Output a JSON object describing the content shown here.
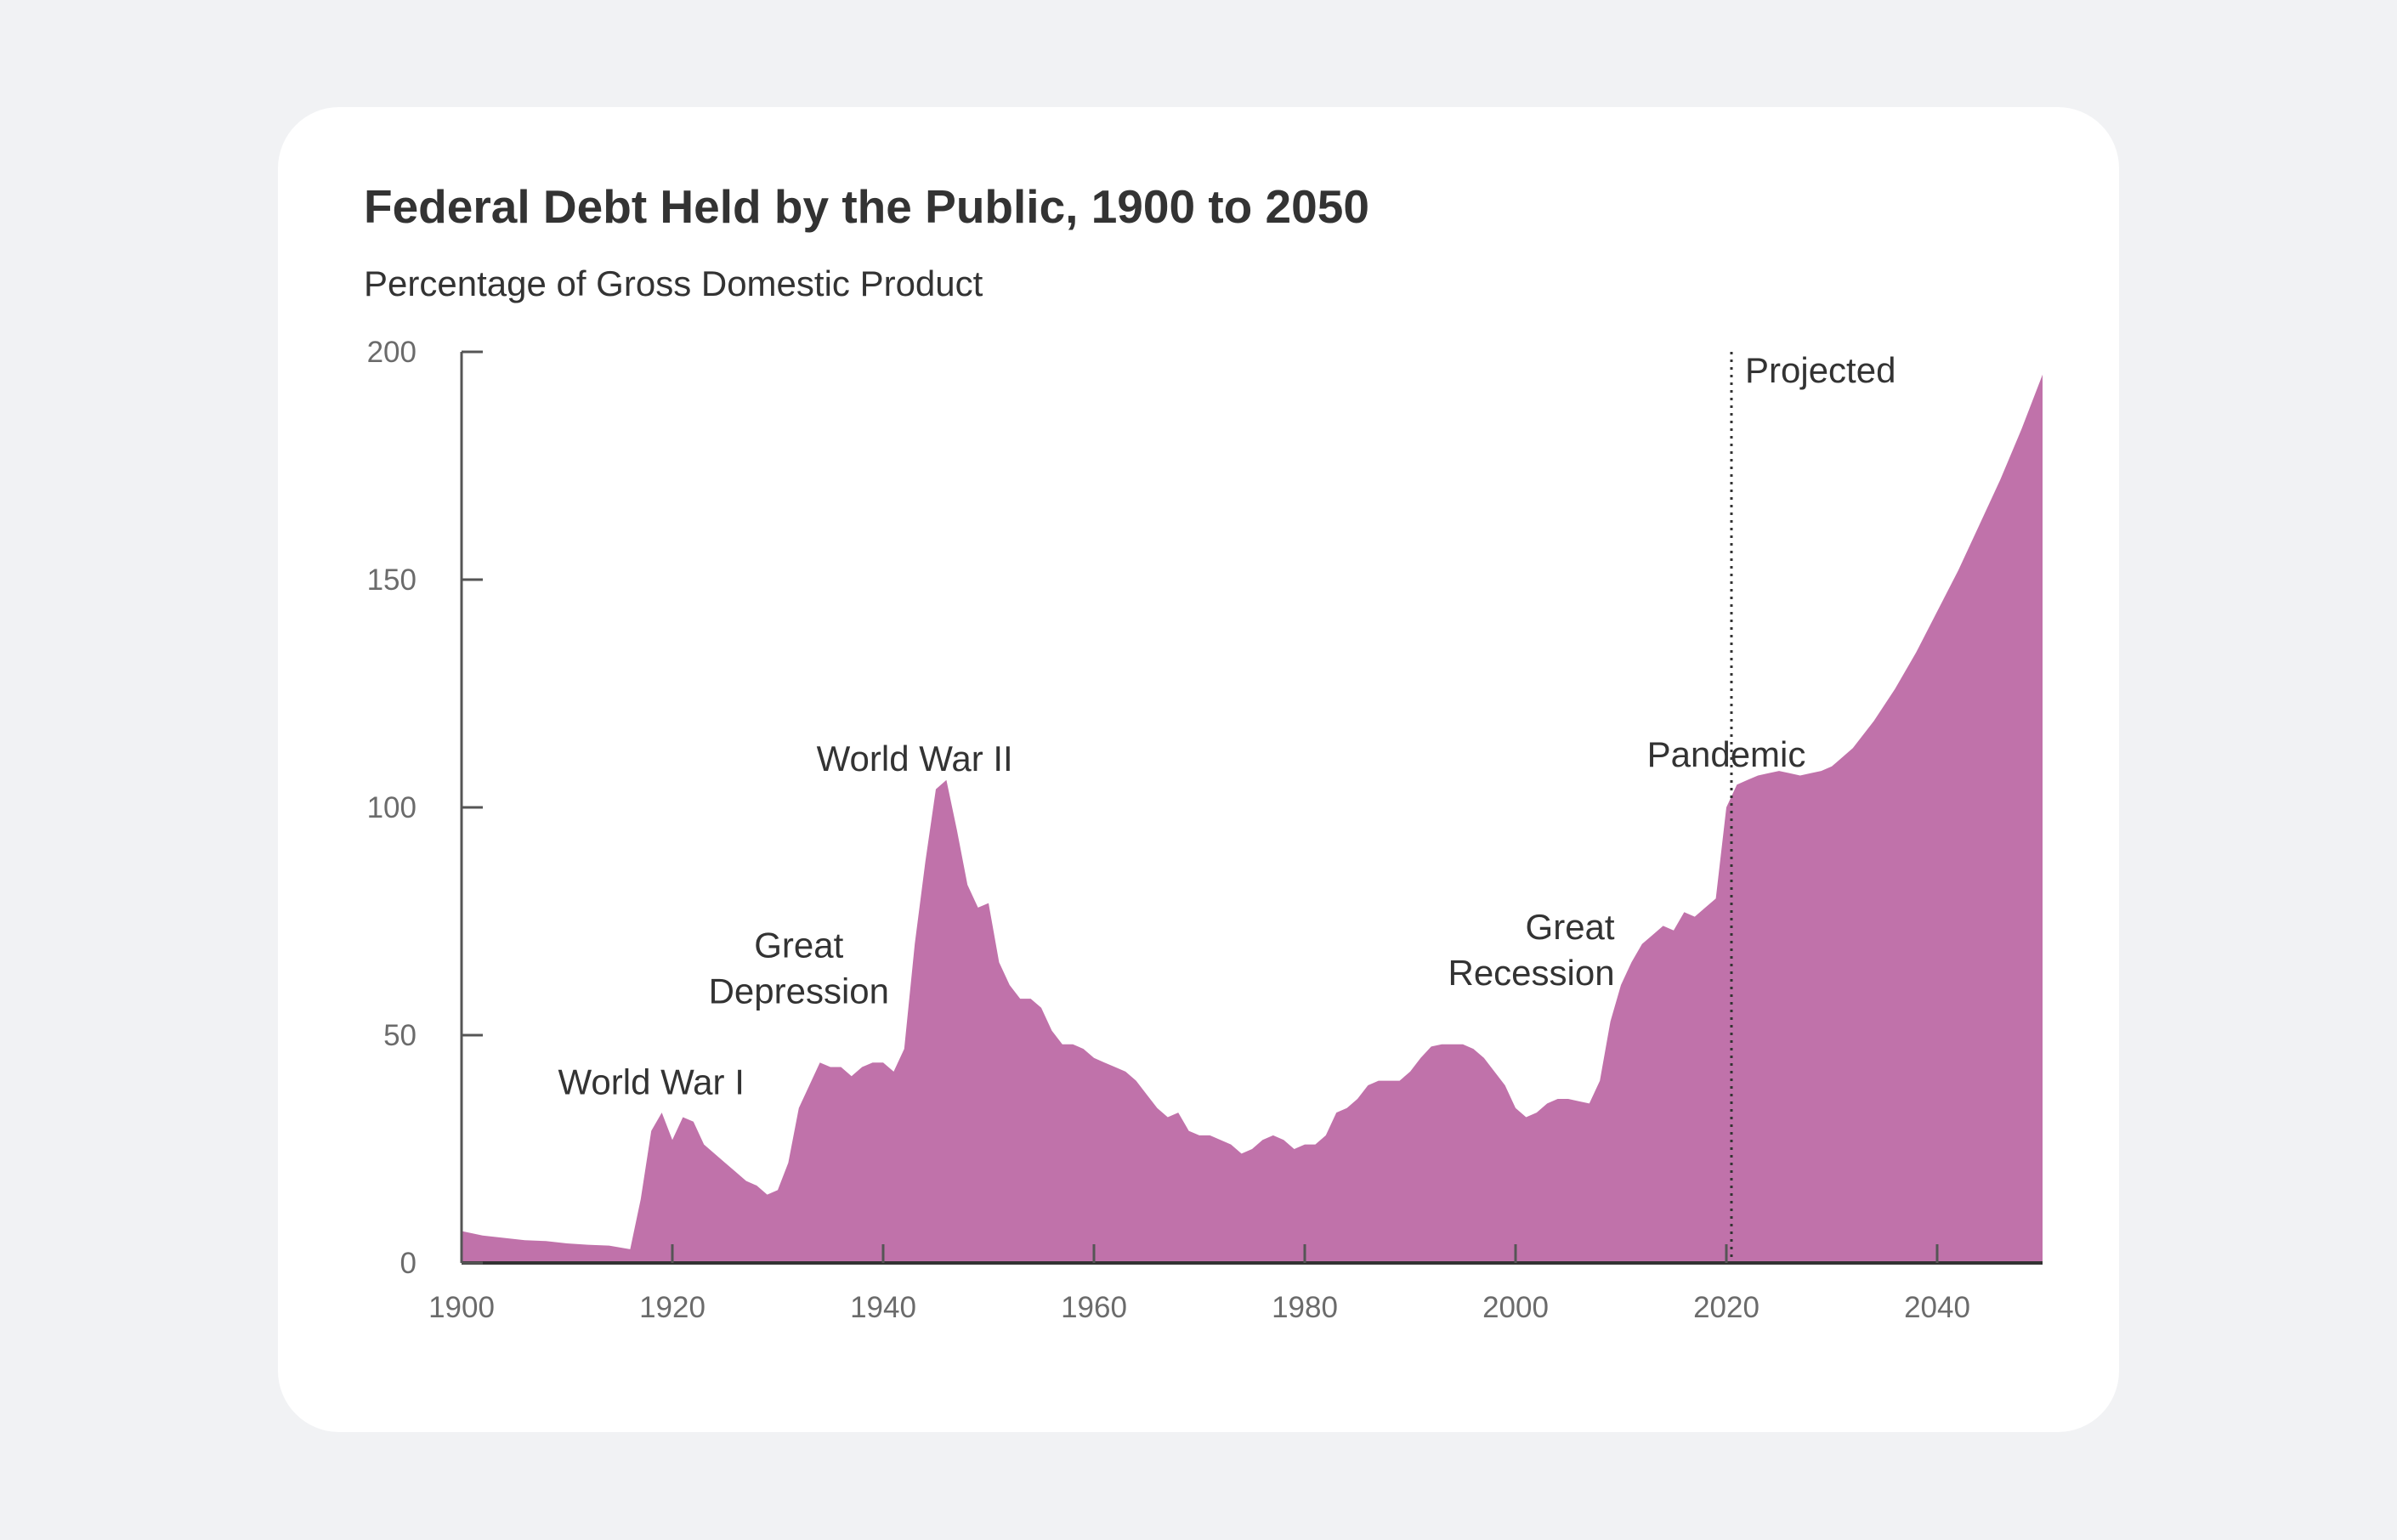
{
  "title": "Federal Debt Held by the Public, 1900 to 2050",
  "subtitle": "Percentage of Gross Domestic Product",
  "colors": {
    "area": "#c072aa",
    "axis": "#333333",
    "background": "#f1f2f4",
    "card": "#ffffff"
  },
  "chart_data": {
    "type": "area",
    "title": "Federal Debt Held by the Public, 1900 to 2050",
    "subtitle": "Percentage of Gross Domestic Product",
    "xlabel": "",
    "ylabel": "",
    "xlim": [
      1900,
      2050
    ],
    "ylim": [
      0,
      200
    ],
    "x_ticks": [
      1900,
      1920,
      1940,
      1960,
      1980,
      2000,
      2020,
      2040
    ],
    "y_ticks": [
      0,
      50,
      100,
      150,
      200
    ],
    "grid": false,
    "projection_start": 2020,
    "projection_label": "Projected",
    "series": [
      {
        "values": [
          [
            1900,
            7
          ],
          [
            1902,
            6
          ],
          [
            1904,
            5.5
          ],
          [
            1906,
            5
          ],
          [
            1908,
            4.8
          ],
          [
            1910,
            4.3
          ],
          [
            1912,
            4
          ],
          [
            1914,
            3.8
          ],
          [
            1916,
            3
          ],
          [
            1917,
            14
          ],
          [
            1918,
            29
          ],
          [
            1919,
            33
          ],
          [
            1920,
            27
          ],
          [
            1921,
            32
          ],
          [
            1922,
            31
          ],
          [
            1923,
            26
          ],
          [
            1924,
            24
          ],
          [
            1925,
            22
          ],
          [
            1926,
            20
          ],
          [
            1927,
            18
          ],
          [
            1928,
            17
          ],
          [
            1929,
            15
          ],
          [
            1930,
            16
          ],
          [
            1931,
            22
          ],
          [
            1932,
            34
          ],
          [
            1933,
            39
          ],
          [
            1934,
            44
          ],
          [
            1935,
            43
          ],
          [
            1936,
            43
          ],
          [
            1937,
            41
          ],
          [
            1938,
            43
          ],
          [
            1939,
            44
          ],
          [
            1940,
            44
          ],
          [
            1941,
            42
          ],
          [
            1942,
            47
          ],
          [
            1943,
            70
          ],
          [
            1944,
            88
          ],
          [
            1945,
            104
          ],
          [
            1946,
            106
          ],
          [
            1947,
            95
          ],
          [
            1948,
            83
          ],
          [
            1949,
            78
          ],
          [
            1950,
            79
          ],
          [
            1951,
            66
          ],
          [
            1952,
            61
          ],
          [
            1953,
            58
          ],
          [
            1954,
            58
          ],
          [
            1955,
            56
          ],
          [
            1956,
            51
          ],
          [
            1957,
            48
          ],
          [
            1958,
            48
          ],
          [
            1959,
            47
          ],
          [
            1960,
            45
          ],
          [
            1961,
            44
          ],
          [
            1962,
            43
          ],
          [
            1963,
            42
          ],
          [
            1964,
            40
          ],
          [
            1965,
            37
          ],
          [
            1966,
            34
          ],
          [
            1967,
            32
          ],
          [
            1968,
            33
          ],
          [
            1969,
            29
          ],
          [
            1970,
            28
          ],
          [
            1971,
            28
          ],
          [
            1972,
            27
          ],
          [
            1973,
            26
          ],
          [
            1974,
            24
          ],
          [
            1975,
            25
          ],
          [
            1976,
            27
          ],
          [
            1977,
            28
          ],
          [
            1978,
            27
          ],
          [
            1979,
            25
          ],
          [
            1980,
            26
          ],
          [
            1981,
            26
          ],
          [
            1982,
            28
          ],
          [
            1983,
            33
          ],
          [
            1984,
            34
          ],
          [
            1985,
            36
          ],
          [
            1986,
            39
          ],
          [
            1987,
            40
          ],
          [
            1988,
            40
          ],
          [
            1989,
            40
          ],
          [
            1990,
            42
          ],
          [
            1991,
            45
          ],
          [
            1992,
            47.5
          ],
          [
            1993,
            48
          ],
          [
            1994,
            48
          ],
          [
            1995,
            48
          ],
          [
            1996,
            47
          ],
          [
            1997,
            45
          ],
          [
            1998,
            42
          ],
          [
            1999,
            39
          ],
          [
            2000,
            34
          ],
          [
            2001,
            32
          ],
          [
            2002,
            33
          ],
          [
            2003,
            35
          ],
          [
            2004,
            36
          ],
          [
            2005,
            36
          ],
          [
            2006,
            35.5
          ],
          [
            2007,
            35
          ],
          [
            2008,
            40
          ],
          [
            2009,
            53
          ],
          [
            2010,
            61
          ],
          [
            2011,
            66
          ],
          [
            2012,
            70
          ],
          [
            2013,
            72
          ],
          [
            2014,
            74
          ],
          [
            2015,
            73
          ],
          [
            2016,
            77
          ],
          [
            2017,
            76
          ],
          [
            2018,
            78
          ],
          [
            2019,
            80
          ],
          [
            2020,
            100
          ],
          [
            2021,
            105
          ],
          [
            2022,
            106
          ],
          [
            2023,
            107
          ],
          [
            2024,
            107.5
          ],
          [
            2025,
            108
          ],
          [
            2026,
            107.5
          ],
          [
            2027,
            107
          ],
          [
            2028,
            107.5
          ],
          [
            2029,
            108
          ],
          [
            2030,
            109
          ],
          [
            2032,
            113
          ],
          [
            2034,
            119
          ],
          [
            2036,
            126
          ],
          [
            2038,
            134
          ],
          [
            2040,
            143
          ],
          [
            2042,
            152
          ],
          [
            2044,
            162
          ],
          [
            2046,
            172
          ],
          [
            2048,
            183
          ],
          [
            2050,
            195
          ]
        ]
      }
    ],
    "annotations": [
      {
        "lines": [
          "World War I"
        ],
        "x": 1918,
        "y": 37
      },
      {
        "lines": [
          "Great",
          "Depression"
        ],
        "x": 1932,
        "y": 57
      },
      {
        "lines": [
          "World War II"
        ],
        "x": 1943,
        "y": 108
      },
      {
        "lines": [
          "Great",
          "Recession"
        ],
        "x": 2009,
        "y": 61
      },
      {
        "lines": [
          "Pandemic"
        ],
        "x": 2020,
        "y": 109
      }
    ]
  }
}
